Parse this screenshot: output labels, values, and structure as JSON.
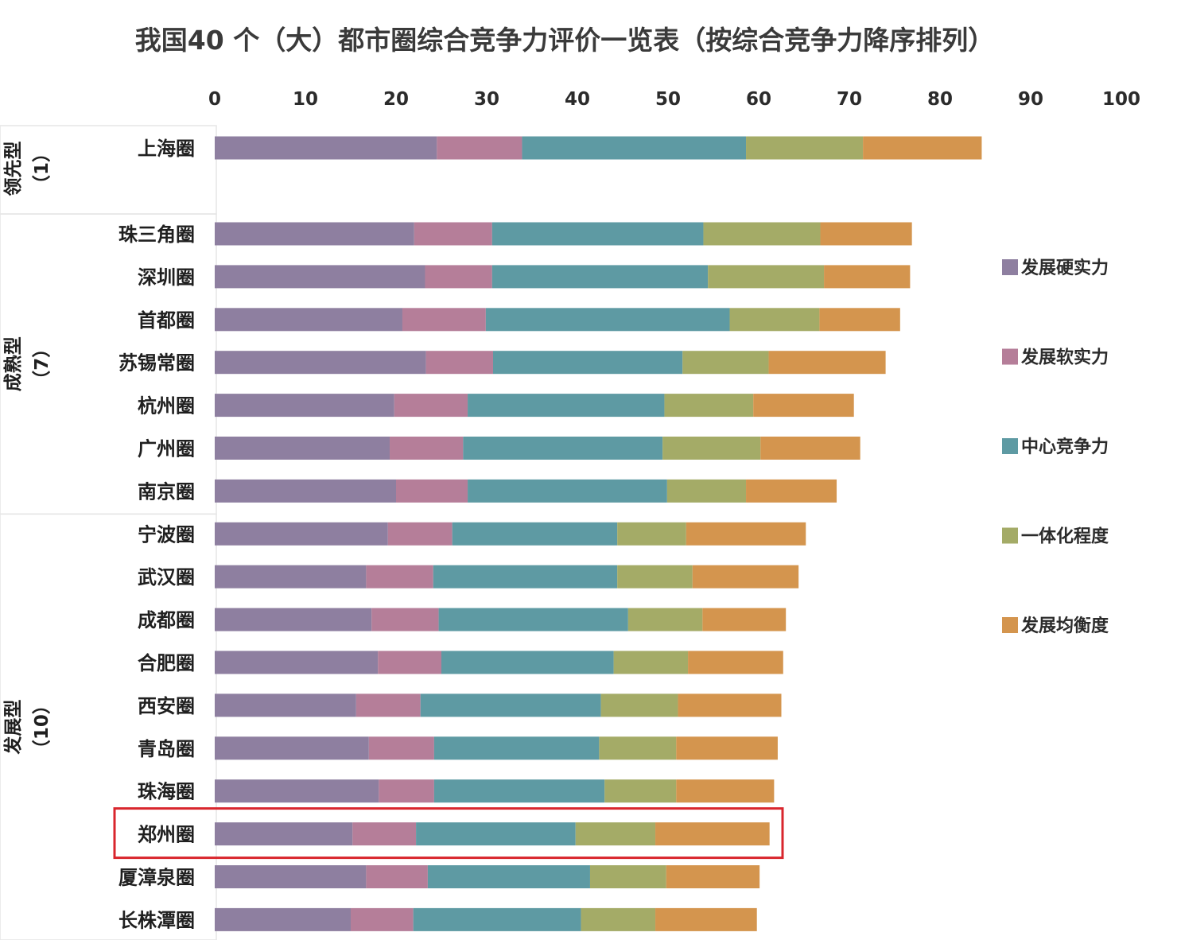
{
  "chart_data": {
    "type": "bar",
    "orientation": "horizontal",
    "stacked": true,
    "title": "我国40 个（大）都市圈综合竞争力评价一览表（按综合竞争力降序排列）",
    "xlim": [
      0,
      100
    ],
    "xticks": [
      "0",
      "10",
      "20",
      "30",
      "40",
      "50",
      "60",
      "70",
      "80",
      "90",
      "100"
    ],
    "grid": false,
    "legend_position": "right",
    "categories": [
      "上海圈",
      "珠三角圈",
      "深圳圈",
      "首都圈",
      "苏锡常圈",
      "杭州圈",
      "广州圈",
      "南京圈",
      "宁波圈",
      "武汉圈",
      "成都圈",
      "合肥圈",
      "西安圈",
      "青岛圈",
      "珠海圈",
      "郑州圈",
      "厦漳泉圈",
      "长株潭圈"
    ],
    "groups": [
      {
        "line1": "领先型",
        "line2": "（1）",
        "count": 1
      },
      {
        "line1": "成熟型",
        "line2": "（7）",
        "count": 7
      },
      {
        "line1": "发展型",
        "line2": "（10）",
        "count": 10
      }
    ],
    "highlight": "郑州圈",
    "series": [
      {
        "name": "发展硬实力",
        "color": "#8e7fa0",
        "values": [
          24.5,
          22.0,
          23.2,
          20.7,
          23.3,
          19.8,
          19.3,
          20.0,
          19.1,
          16.7,
          17.3,
          18.0,
          15.6,
          17.0,
          18.1,
          15.2,
          16.7,
          15.0
        ]
      },
      {
        "name": "发展软实力",
        "color": "#b57e99",
        "values": [
          9.4,
          8.6,
          7.4,
          9.2,
          7.4,
          8.1,
          8.1,
          7.9,
          7.1,
          7.4,
          7.4,
          7.0,
          7.1,
          7.2,
          6.1,
          7.0,
          6.8,
          6.9
        ]
      },
      {
        "name": "中心竞争力",
        "color": "#5e9aa3",
        "values": [
          24.7,
          23.3,
          23.8,
          26.9,
          20.9,
          21.7,
          22.0,
          22.0,
          18.2,
          20.3,
          20.9,
          19.0,
          19.9,
          18.2,
          18.8,
          17.6,
          17.9,
          18.5
        ]
      },
      {
        "name": "一体化程度",
        "color": "#a4ab67",
        "values": [
          12.9,
          12.9,
          12.8,
          9.9,
          9.5,
          9.8,
          10.8,
          8.7,
          7.6,
          8.3,
          8.2,
          8.2,
          8.5,
          8.5,
          7.9,
          8.8,
          8.4,
          8.2
        ]
      },
      {
        "name": "发展均衡度",
        "color": "#d4954e",
        "values": [
          13.1,
          10.1,
          9.5,
          8.9,
          12.9,
          11.1,
          11.0,
          10.0,
          13.2,
          11.7,
          9.2,
          10.5,
          11.4,
          11.2,
          10.8,
          12.6,
          10.3,
          11.2
        ]
      }
    ]
  },
  "colors": {
    "highlight_border": "#d9262d",
    "group_border": "#e6e6e6"
  }
}
